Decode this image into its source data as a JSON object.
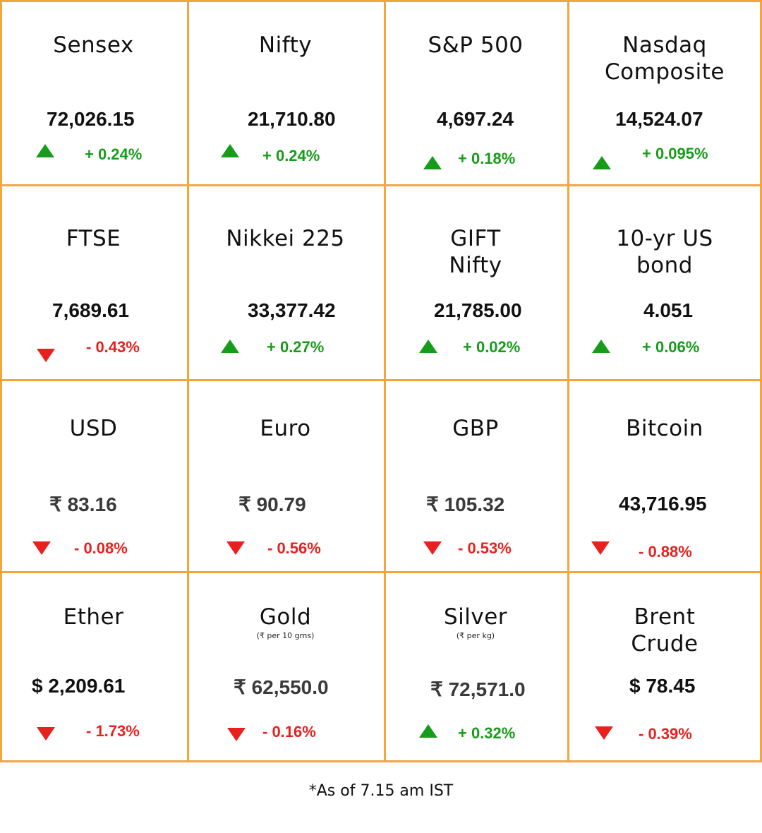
{
  "colors": {
    "border": "#f4a63d",
    "up": "#169c1a",
    "down": "#e8211e"
  },
  "tiles": [
    {
      "name": "Sensex",
      "value": "72,026.15",
      "direction": "up",
      "change": "+ 0.24%"
    },
    {
      "name": "Nifty",
      "value": "21,710.80",
      "direction": "up",
      "change": "+ 0.24%"
    },
    {
      "name": "S&P 500",
      "value": "4,697.24",
      "direction": "up",
      "change": "+ 0.18%"
    },
    {
      "name_line1": "Nasdaq",
      "name_line2": "Composite",
      "value": "14,524.07",
      "direction": "up",
      "change": "+ 0.095%"
    },
    {
      "name": "FTSE",
      "value": "7,689.61",
      "direction": "down",
      "change": "- 0.43%"
    },
    {
      "name": "Nikkei 225",
      "value": "33,377.42",
      "direction": "up",
      "change": "+ 0.27%"
    },
    {
      "name_line1": "GIFT",
      "name_line2": "Nifty",
      "value": "21,785.00",
      "direction": "up",
      "change": "+ 0.02%"
    },
    {
      "name_line1": "10-yr US",
      "name_line2": "bond",
      "value": "4.051",
      "direction": "up",
      "change": "+ 0.06%"
    },
    {
      "name": "USD",
      "value": "₹ 83.16",
      "direction": "down",
      "change": "- 0.08%"
    },
    {
      "name": "Euro",
      "value": "₹ 90.79",
      "direction": "down",
      "change": "- 0.56%"
    },
    {
      "name": "GBP",
      "value": "₹ 105.32",
      "direction": "down",
      "change": "- 0.53%"
    },
    {
      "name": "Bitcoin",
      "value": "43,716.95",
      "direction": "down",
      "change": "- 0.88%"
    },
    {
      "name": "Ether",
      "value": "$ 2,209.61",
      "direction": "down",
      "change": "- 1.73%"
    },
    {
      "name": "Gold",
      "unit": "(₹ per 10 gms)",
      "value": "₹ 62,550.0",
      "direction": "down",
      "change": "- 0.16%"
    },
    {
      "name": "Silver",
      "unit": "(₹ per kg)",
      "value": "₹ 72,571.0",
      "direction": "up",
      "change": "+ 0.32%"
    },
    {
      "name_line1": "Brent",
      "name_line2": "Crude",
      "value": "$ 78.45",
      "direction": "down",
      "change": "- 0.39%"
    }
  ],
  "footnote": "*As of 7.15 am IST"
}
